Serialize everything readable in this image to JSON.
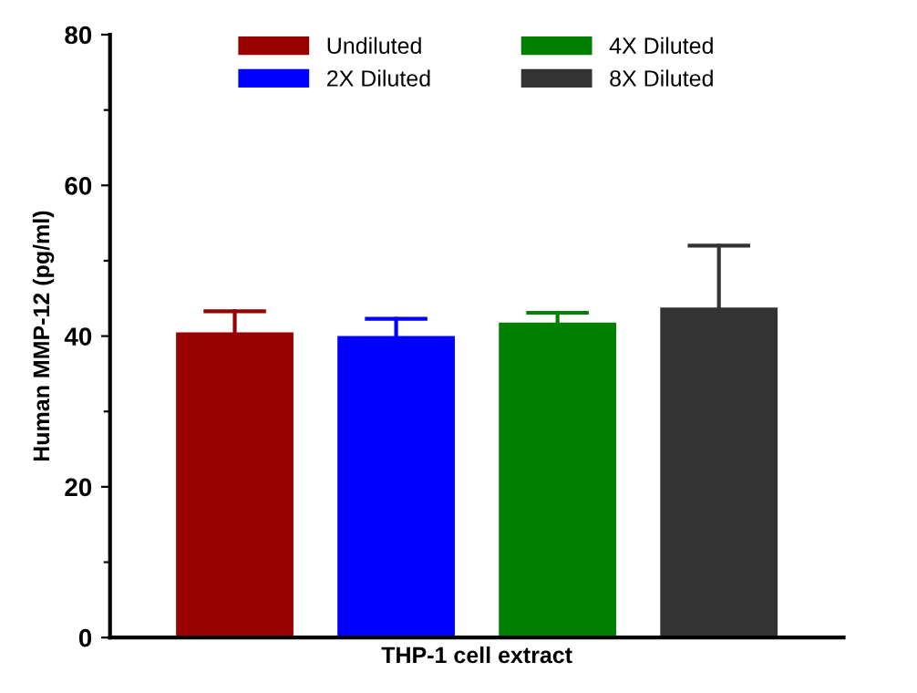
{
  "chart_data": {
    "type": "bar",
    "ylabel": "Human MMP-12 (pg/ml)",
    "categories": [
      "THP-1 cell extract"
    ],
    "series": [
      {
        "name": "Undiluted",
        "color": "#990000",
        "values": [
          40.5
        ],
        "errors": [
          [
            40.5,
            43.3
          ]
        ]
      },
      {
        "name": "2X Diluted",
        "color": "#0000ff",
        "values": [
          40.0
        ],
        "errors": [
          [
            40.0,
            42.3
          ]
        ]
      },
      {
        "name": "4X Diluted",
        "color": "#008000",
        "values": [
          41.8
        ],
        "errors": [
          [
            41.8,
            43.1
          ]
        ]
      },
      {
        "name": "8X Diluted",
        "color": "#333333",
        "values": [
          43.8
        ],
        "errors": [
          [
            43.8,
            52.0
          ]
        ]
      }
    ],
    "ylim": [
      0,
      80
    ],
    "yticks": [
      0,
      {
        "value": 10,
        "label": null
      },
      20,
      {
        "value": 30,
        "label": null
      },
      40,
      {
        "value": 50,
        "label": null
      },
      60,
      {
        "value": 70,
        "label": null
      },
      80
    ],
    "legend": "top",
    "grid": false
  }
}
